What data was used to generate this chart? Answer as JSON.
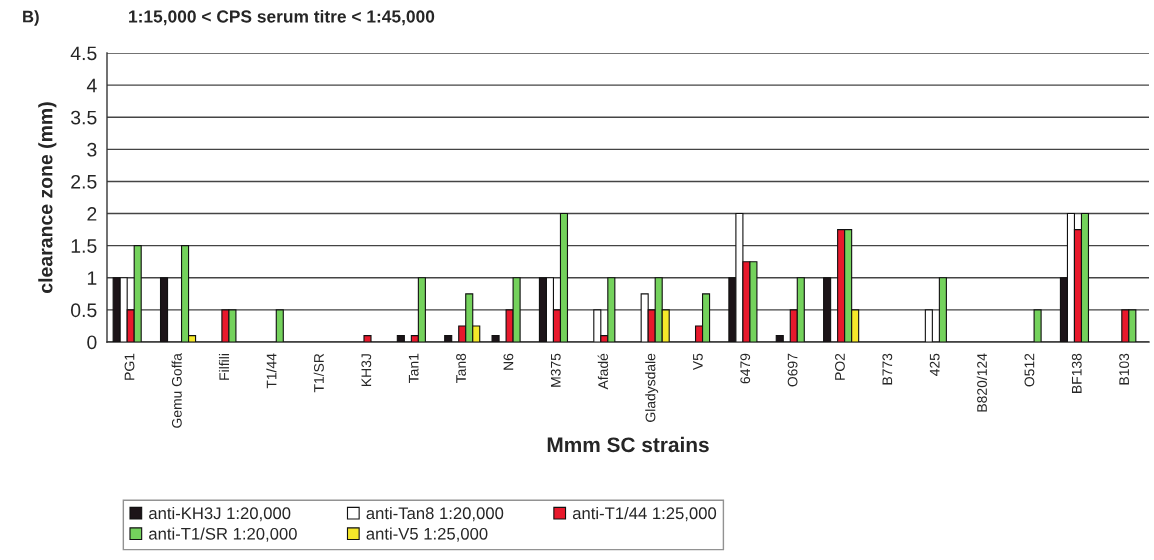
{
  "chart_data": {
    "type": "bar",
    "title": "1:15,000 < CPS serum titre < 1:45,000",
    "xlabel": "Mmm SC strains",
    "ylabel": "clearance zone (mm)",
    "annotations": [
      "B)"
    ],
    "categories": [
      "PG1",
      "Gemu Goffa",
      "Filfili",
      "T1/44",
      "T1/SR",
      "KH3J",
      "Tan1",
      "Tan8",
      "N6",
      "M375",
      "Afadé",
      "Gladysdale",
      "V5",
      "6479",
      "O697",
      "PO2",
      "B773",
      "425",
      "B820/124",
      "O512",
      "BF138",
      "B103"
    ],
    "series": [
      {
        "name": "anti-KH3J 1:20,000",
        "color": "#1c1418",
        "values": [
          1,
          1,
          null,
          null,
          null,
          null,
          0.1,
          0.1,
          0.1,
          1,
          null,
          null,
          null,
          1,
          0.1,
          1,
          null,
          null,
          null,
          null,
          1,
          null
        ]
      },
      {
        "name": "anti-Tan8 1:20,000",
        "color": "#ffffff",
        "values": [
          1,
          null,
          null,
          null,
          null,
          null,
          null,
          null,
          null,
          1,
          0.5,
          0.75,
          null,
          2,
          null,
          null,
          null,
          0.5,
          null,
          null,
          2,
          null
        ]
      },
      {
        "name": "anti-T1/44 1:25,000",
        "color": "#e8192c",
        "values": [
          0.5,
          null,
          0.5,
          null,
          null,
          0.1,
          0.1,
          0.25,
          0.5,
          0.5,
          0.1,
          0.5,
          0.25,
          1.25,
          0.5,
          1.75,
          null,
          null,
          null,
          null,
          1.75,
          0.5
        ]
      },
      {
        "name": "anti-T1/SR 1:20,000",
        "color": "#74d25c",
        "values": [
          1.5,
          1.5,
          0.5,
          0.5,
          null,
          null,
          1,
          0.75,
          1,
          2,
          1,
          1,
          0.75,
          1.25,
          1,
          1.75,
          null,
          1,
          null,
          0.5,
          2,
          0.5
        ]
      },
      {
        "name": "anti-V5 1:25,000",
        "color": "#f5e82a",
        "values": [
          null,
          0.1,
          null,
          null,
          null,
          null,
          null,
          0.25,
          null,
          null,
          null,
          0.5,
          null,
          null,
          null,
          0.5,
          null,
          null,
          null,
          null,
          null,
          null
        ]
      }
    ],
    "ylim": [
      0,
      4.5
    ],
    "yticks": [
      0,
      0.5,
      1,
      1.5,
      2,
      2.5,
      3,
      3.5,
      4,
      4.5
    ],
    "grid": "y",
    "legend": "bottom"
  }
}
